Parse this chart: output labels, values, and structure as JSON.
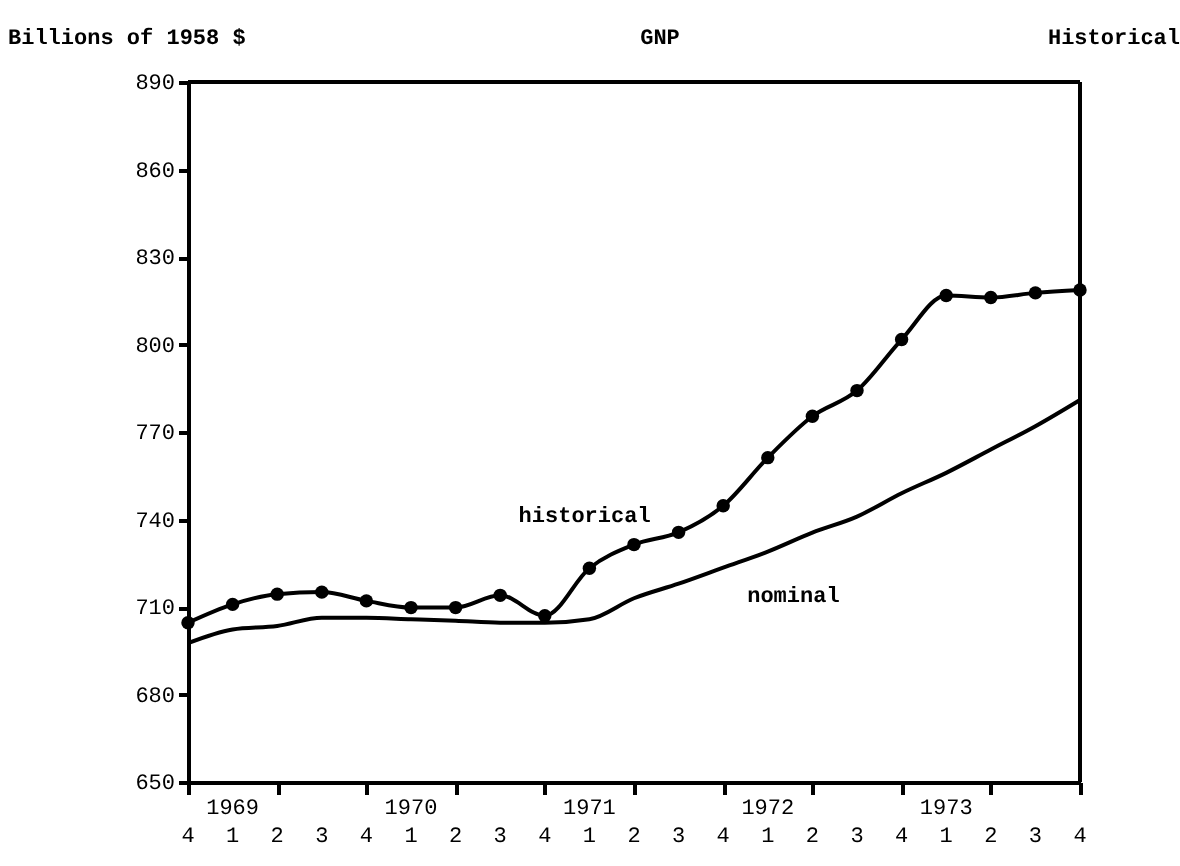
{
  "chart_data": {
    "type": "line",
    "title": "GNP",
    "ylabel": "Billions of 1958 $",
    "annotations": [
      "Historical"
    ],
    "categories": [
      "4",
      "1969\n1",
      "2",
      "3",
      "4",
      "1970\n1",
      "2",
      "3",
      "4",
      "1971\n1",
      "2",
      "3",
      "4",
      "1972\n1",
      "2",
      "3",
      "4",
      "1973\n1",
      "2",
      "3",
      "4"
    ],
    "ylim": [
      650,
      890
    ],
    "yticks": [
      650,
      680,
      710,
      740,
      770,
      800,
      830,
      860,
      890
    ],
    "series": [
      {
        "name": "historical",
        "color": "#000000",
        "marker": "circle",
        "values": [
          704.6,
          710.9,
          714.4,
          715.1,
          712.1,
          709.8,
          709.8,
          714,
          707,
          723.3,
          731.4,
          735.6,
          744.7,
          761.2,
          775.4,
          784.2,
          801.7,
          816.8,
          816.1,
          817.7,
          818.7
        ]
      },
      {
        "name": "nominal",
        "color": "#000000",
        "marker": "none",
        "values": [
          697.6,
          702.3,
          703.5,
          706.3,
          706.3,
          705.8,
          705.3,
          704.6,
          704.6,
          705.8,
          713,
          718,
          723.5,
          729,
          735.5,
          741,
          749,
          756,
          764,
          772,
          781
        ]
      }
    ]
  }
}
